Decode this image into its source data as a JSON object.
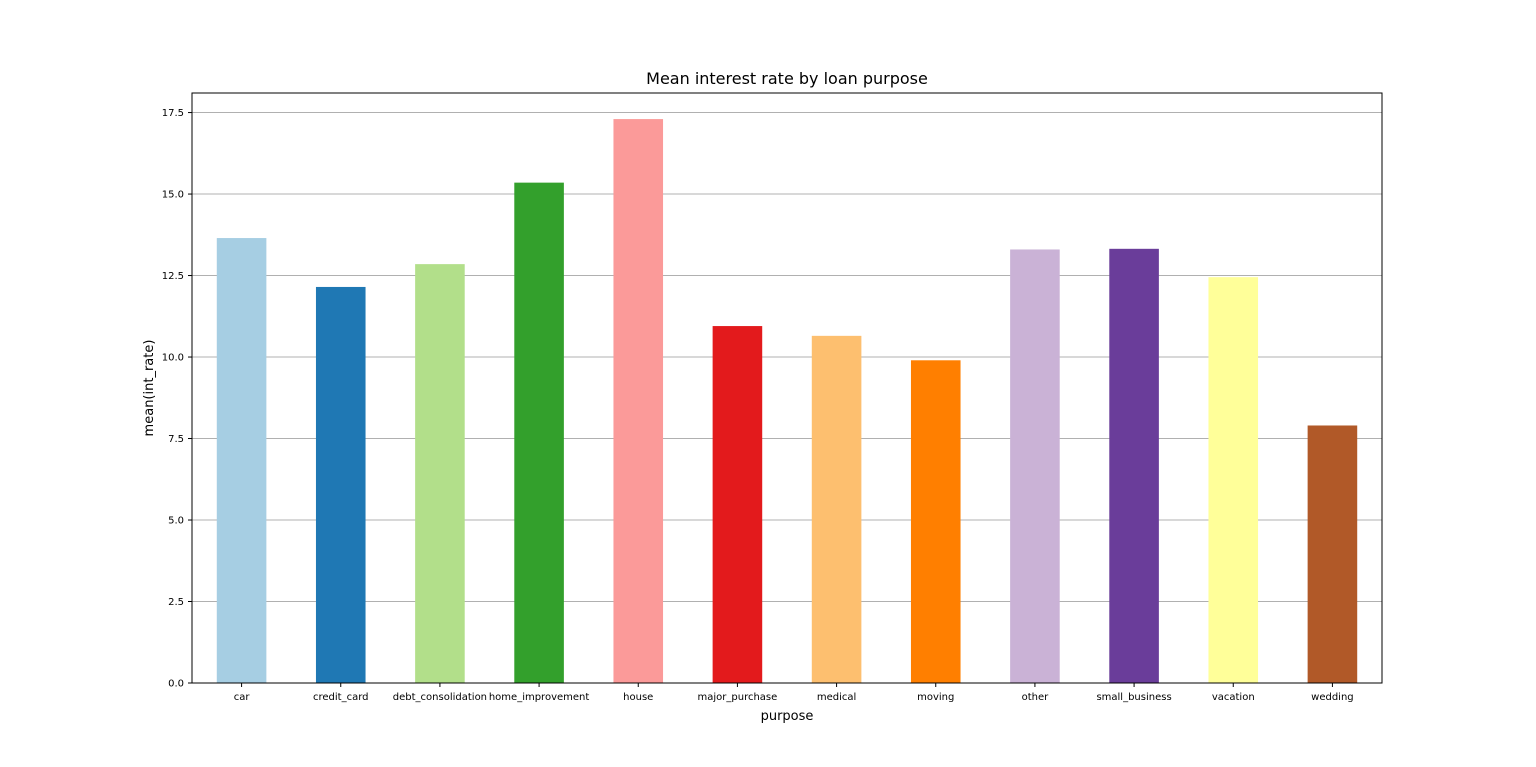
{
  "chart_data": {
    "type": "bar",
    "title": "Mean interest rate by loan purpose",
    "xlabel": "purpose",
    "ylabel": "mean(int_rate)",
    "categories": [
      "car",
      "credit_card",
      "debt_consolidation",
      "home_improvement",
      "house",
      "major_purchase",
      "medical",
      "moving",
      "other",
      "small_business",
      "vacation",
      "wedding"
    ],
    "values": [
      13.65,
      12.15,
      12.85,
      15.35,
      17.3,
      10.95,
      10.65,
      9.9,
      13.3,
      13.32,
      12.45,
      7.9
    ],
    "colors": [
      "#a6cee3",
      "#1f78b4",
      "#b2df8a",
      "#33a02c",
      "#fb9a99",
      "#e31a1c",
      "#fdbf6f",
      "#ff7f00",
      "#cab2d6",
      "#6a3d9a",
      "#ffff99",
      "#b15928"
    ],
    "ylim": [
      0,
      18.1
    ],
    "yticks": [
      "0.0",
      "2.5",
      "5.0",
      "7.5",
      "10.0",
      "12.5",
      "15.0",
      "17.5"
    ],
    "grid": "y",
    "legend": "none"
  }
}
